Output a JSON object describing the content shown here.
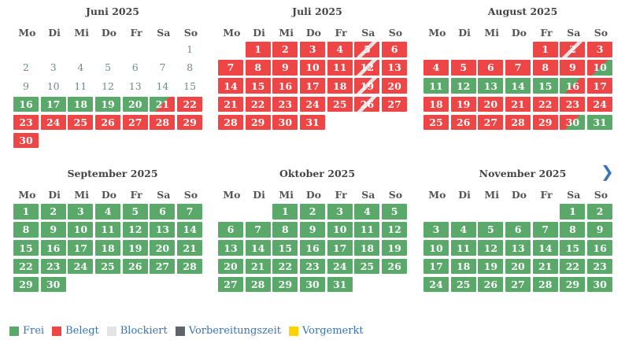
{
  "weekdays": [
    "Mo",
    "Di",
    "Mi",
    "Do",
    "Fr",
    "Sa",
    "So"
  ],
  "months": [
    {
      "title": "Juni 2025",
      "cells": [
        {
          "t": ""
        },
        {
          "t": ""
        },
        {
          "t": ""
        },
        {
          "t": ""
        },
        {
          "t": ""
        },
        {
          "t": ""
        },
        {
          "t": "1",
          "s": "past"
        },
        {
          "t": "2",
          "s": "past"
        },
        {
          "t": "3",
          "s": "past"
        },
        {
          "t": "4",
          "s": "past"
        },
        {
          "t": "5",
          "s": "past"
        },
        {
          "t": "6",
          "s": "past"
        },
        {
          "t": "7",
          "s": "past"
        },
        {
          "t": "8",
          "s": "past"
        },
        {
          "t": "9",
          "s": "past"
        },
        {
          "t": "10",
          "s": "past"
        },
        {
          "t": "11",
          "s": "past"
        },
        {
          "t": "12",
          "s": "past"
        },
        {
          "t": "13",
          "s": "past"
        },
        {
          "t": "14",
          "s": "past"
        },
        {
          "t": "15",
          "s": "past"
        },
        {
          "t": "16",
          "s": "frei"
        },
        {
          "t": "17",
          "s": "frei"
        },
        {
          "t": "18",
          "s": "frei"
        },
        {
          "t": "19",
          "s": "frei"
        },
        {
          "t": "20",
          "s": "frei"
        },
        {
          "t": "21",
          "s": "frei-belegt"
        },
        {
          "t": "22",
          "s": "belegt"
        },
        {
          "t": "23",
          "s": "belegt"
        },
        {
          "t": "24",
          "s": "belegt"
        },
        {
          "t": "25",
          "s": "belegt"
        },
        {
          "t": "26",
          "s": "belegt"
        },
        {
          "t": "27",
          "s": "belegt"
        },
        {
          "t": "28",
          "s": "belegt"
        },
        {
          "t": "29",
          "s": "belegt"
        },
        {
          "t": "30",
          "s": "belegt"
        }
      ]
    },
    {
      "title": "Juli 2025",
      "cells": [
        {
          "t": ""
        },
        {
          "t": "1",
          "s": "belegt"
        },
        {
          "t": "2",
          "s": "belegt"
        },
        {
          "t": "3",
          "s": "belegt"
        },
        {
          "t": "4",
          "s": "belegt"
        },
        {
          "t": "5",
          "s": "wechsel"
        },
        {
          "t": "6",
          "s": "belegt"
        },
        {
          "t": "7",
          "s": "belegt"
        },
        {
          "t": "8",
          "s": "belegt"
        },
        {
          "t": "9",
          "s": "belegt"
        },
        {
          "t": "10",
          "s": "belegt"
        },
        {
          "t": "11",
          "s": "belegt"
        },
        {
          "t": "12",
          "s": "wechsel"
        },
        {
          "t": "13",
          "s": "belegt"
        },
        {
          "t": "14",
          "s": "belegt"
        },
        {
          "t": "15",
          "s": "belegt"
        },
        {
          "t": "16",
          "s": "belegt"
        },
        {
          "t": "17",
          "s": "belegt"
        },
        {
          "t": "18",
          "s": "belegt"
        },
        {
          "t": "19",
          "s": "wechsel"
        },
        {
          "t": "20",
          "s": "belegt"
        },
        {
          "t": "21",
          "s": "belegt"
        },
        {
          "t": "22",
          "s": "belegt"
        },
        {
          "t": "23",
          "s": "belegt"
        },
        {
          "t": "24",
          "s": "belegt"
        },
        {
          "t": "25",
          "s": "belegt"
        },
        {
          "t": "26",
          "s": "wechsel"
        },
        {
          "t": "27",
          "s": "belegt"
        },
        {
          "t": "28",
          "s": "belegt"
        },
        {
          "t": "29",
          "s": "belegt"
        },
        {
          "t": "30",
          "s": "belegt"
        },
        {
          "t": "31",
          "s": "belegt"
        }
      ]
    },
    {
      "title": "August 2025",
      "cells": [
        {
          "t": ""
        },
        {
          "t": ""
        },
        {
          "t": ""
        },
        {
          "t": ""
        },
        {
          "t": "1",
          "s": "belegt"
        },
        {
          "t": "2",
          "s": "wechsel"
        },
        {
          "t": "3",
          "s": "belegt"
        },
        {
          "t": "4",
          "s": "belegt"
        },
        {
          "t": "5",
          "s": "belegt"
        },
        {
          "t": "6",
          "s": "belegt"
        },
        {
          "t": "7",
          "s": "belegt"
        },
        {
          "t": "8",
          "s": "belegt"
        },
        {
          "t": "9",
          "s": "belegt"
        },
        {
          "t": "10",
          "s": "belegt-frei"
        },
        {
          "t": "11",
          "s": "frei"
        },
        {
          "t": "12",
          "s": "frei"
        },
        {
          "t": "13",
          "s": "frei"
        },
        {
          "t": "14",
          "s": "frei"
        },
        {
          "t": "15",
          "s": "frei"
        },
        {
          "t": "16",
          "s": "frei-belegt"
        },
        {
          "t": "17",
          "s": "belegt"
        },
        {
          "t": "18",
          "s": "belegt"
        },
        {
          "t": "19",
          "s": "belegt"
        },
        {
          "t": "20",
          "s": "belegt"
        },
        {
          "t": "21",
          "s": "belegt"
        },
        {
          "t": "22",
          "s": "belegt"
        },
        {
          "t": "23",
          "s": "belegt"
        },
        {
          "t": "24",
          "s": "belegt"
        },
        {
          "t": "25",
          "s": "belegt"
        },
        {
          "t": "26",
          "s": "belegt"
        },
        {
          "t": "27",
          "s": "belegt"
        },
        {
          "t": "28",
          "s": "belegt"
        },
        {
          "t": "29",
          "s": "belegt"
        },
        {
          "t": "30",
          "s": "belegt-frei"
        },
        {
          "t": "31",
          "s": "frei"
        }
      ]
    },
    {
      "title": "September 2025",
      "cells": [
        {
          "t": "1",
          "s": "frei"
        },
        {
          "t": "2",
          "s": "frei"
        },
        {
          "t": "3",
          "s": "frei"
        },
        {
          "t": "4",
          "s": "frei"
        },
        {
          "t": "5",
          "s": "frei"
        },
        {
          "t": "6",
          "s": "frei"
        },
        {
          "t": "7",
          "s": "frei"
        },
        {
          "t": "8",
          "s": "frei"
        },
        {
          "t": "9",
          "s": "frei"
        },
        {
          "t": "10",
          "s": "frei"
        },
        {
          "t": "11",
          "s": "frei"
        },
        {
          "t": "12",
          "s": "frei"
        },
        {
          "t": "13",
          "s": "frei"
        },
        {
          "t": "14",
          "s": "frei"
        },
        {
          "t": "15",
          "s": "frei"
        },
        {
          "t": "16",
          "s": "frei"
        },
        {
          "t": "17",
          "s": "frei"
        },
        {
          "t": "18",
          "s": "frei"
        },
        {
          "t": "19",
          "s": "frei"
        },
        {
          "t": "20",
          "s": "frei"
        },
        {
          "t": "21",
          "s": "frei"
        },
        {
          "t": "22",
          "s": "frei"
        },
        {
          "t": "23",
          "s": "frei"
        },
        {
          "t": "24",
          "s": "frei"
        },
        {
          "t": "25",
          "s": "frei"
        },
        {
          "t": "26",
          "s": "frei"
        },
        {
          "t": "27",
          "s": "frei"
        },
        {
          "t": "28",
          "s": "frei"
        },
        {
          "t": "29",
          "s": "frei"
        },
        {
          "t": "30",
          "s": "frei"
        }
      ]
    },
    {
      "title": "Oktober 2025",
      "cells": [
        {
          "t": ""
        },
        {
          "t": ""
        },
        {
          "t": "1",
          "s": "frei"
        },
        {
          "t": "2",
          "s": "frei"
        },
        {
          "t": "3",
          "s": "frei"
        },
        {
          "t": "4",
          "s": "frei"
        },
        {
          "t": "5",
          "s": "frei"
        },
        {
          "t": "6",
          "s": "frei"
        },
        {
          "t": "7",
          "s": "frei"
        },
        {
          "t": "8",
          "s": "frei"
        },
        {
          "t": "9",
          "s": "frei"
        },
        {
          "t": "10",
          "s": "frei"
        },
        {
          "t": "11",
          "s": "frei"
        },
        {
          "t": "12",
          "s": "frei"
        },
        {
          "t": "13",
          "s": "frei"
        },
        {
          "t": "14",
          "s": "frei"
        },
        {
          "t": "15",
          "s": "frei"
        },
        {
          "t": "16",
          "s": "frei"
        },
        {
          "t": "17",
          "s": "frei"
        },
        {
          "t": "18",
          "s": "frei"
        },
        {
          "t": "19",
          "s": "frei"
        },
        {
          "t": "20",
          "s": "frei"
        },
        {
          "t": "21",
          "s": "frei"
        },
        {
          "t": "22",
          "s": "frei"
        },
        {
          "t": "23",
          "s": "frei"
        },
        {
          "t": "24",
          "s": "frei"
        },
        {
          "t": "25",
          "s": "frei"
        },
        {
          "t": "26",
          "s": "frei"
        },
        {
          "t": "27",
          "s": "frei"
        },
        {
          "t": "28",
          "s": "frei"
        },
        {
          "t": "29",
          "s": "frei"
        },
        {
          "t": "30",
          "s": "frei"
        },
        {
          "t": "31",
          "s": "frei"
        }
      ]
    },
    {
      "title": "November 2025",
      "cells": [
        {
          "t": ""
        },
        {
          "t": ""
        },
        {
          "t": ""
        },
        {
          "t": ""
        },
        {
          "t": ""
        },
        {
          "t": "1",
          "s": "frei"
        },
        {
          "t": "2",
          "s": "frei"
        },
        {
          "t": "3",
          "s": "frei"
        },
        {
          "t": "4",
          "s": "frei"
        },
        {
          "t": "5",
          "s": "frei"
        },
        {
          "t": "6",
          "s": "frei"
        },
        {
          "t": "7",
          "s": "frei"
        },
        {
          "t": "8",
          "s": "frei"
        },
        {
          "t": "9",
          "s": "frei"
        },
        {
          "t": "10",
          "s": "frei"
        },
        {
          "t": "11",
          "s": "frei"
        },
        {
          "t": "12",
          "s": "frei"
        },
        {
          "t": "13",
          "s": "frei"
        },
        {
          "t": "14",
          "s": "frei"
        },
        {
          "t": "15",
          "s": "frei"
        },
        {
          "t": "16",
          "s": "frei"
        },
        {
          "t": "17",
          "s": "frei"
        },
        {
          "t": "18",
          "s": "frei"
        },
        {
          "t": "19",
          "s": "frei"
        },
        {
          "t": "20",
          "s": "frei"
        },
        {
          "t": "21",
          "s": "frei"
        },
        {
          "t": "22",
          "s": "frei"
        },
        {
          "t": "23",
          "s": "frei"
        },
        {
          "t": "24",
          "s": "frei"
        },
        {
          "t": "25",
          "s": "frei"
        },
        {
          "t": "26",
          "s": "frei"
        },
        {
          "t": "27",
          "s": "frei"
        },
        {
          "t": "28",
          "s": "frei"
        },
        {
          "t": "29",
          "s": "frei"
        },
        {
          "t": "30",
          "s": "frei"
        }
      ]
    }
  ],
  "next_icon": "chevron-right-icon",
  "next_glyph": "❯",
  "legend": [
    {
      "label": "Frei",
      "color": "#5aa86a"
    },
    {
      "label": "Belegt",
      "color": "#ee4646"
    },
    {
      "label": "Blockiert",
      "color": "#e4e4e4"
    },
    {
      "label": "Vorbereitungszeit",
      "color": "#5f6469"
    },
    {
      "label": "Vorgemerkt",
      "color": "#ffd200"
    }
  ]
}
